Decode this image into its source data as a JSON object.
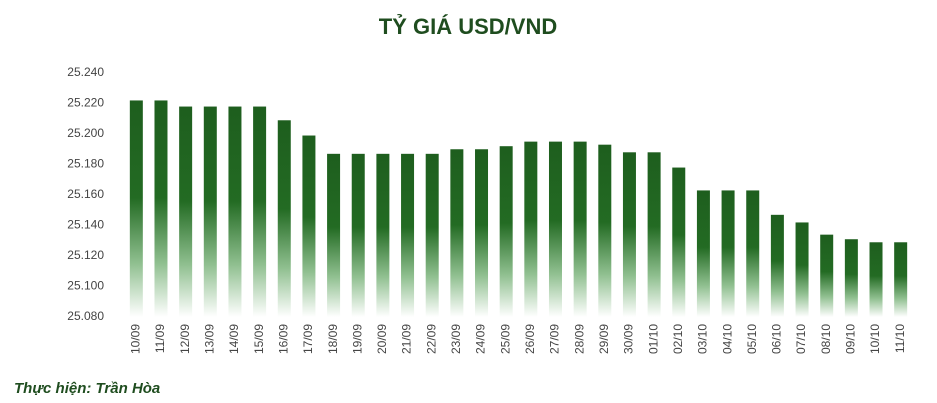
{
  "chart_data": {
    "type": "bar",
    "title": "TỶ GIÁ USD/VND",
    "credit": "Thực hiện: Trần Hòa",
    "categories": [
      "10/09",
      "11/09",
      "12/09",
      "13/09",
      "14/09",
      "15/09",
      "16/09",
      "17/09",
      "18/09",
      "19/09",
      "20/09",
      "21/09",
      "22/09",
      "23/09",
      "24/09",
      "25/09",
      "26/09",
      "27/09",
      "28/09",
      "29/09",
      "30/09",
      "01/10",
      "02/10",
      "03/10",
      "04/10",
      "05/10",
      "06/10",
      "07/10",
      "08/10",
      "09/10",
      "10/10",
      "11/10"
    ],
    "values": [
      25222,
      25222,
      25218,
      25218,
      25218,
      25218,
      25209,
      25199,
      25187,
      25187,
      25187,
      25187,
      25187,
      25190,
      25190,
      25192,
      25195,
      25195,
      25195,
      25193,
      25188,
      25188,
      25178,
      25163,
      25163,
      25163,
      25147,
      25142,
      25134,
      25131,
      25129,
      25129
    ],
    "color": "#1e5e1e",
    "ylim": [
      25080,
      25240
    ],
    "yticks": [
      {
        "value": 25080,
        "label": "25.080"
      },
      {
        "value": 25100,
        "label": "25.100"
      },
      {
        "value": 25120,
        "label": "25.120"
      },
      {
        "value": 25140,
        "label": "25.140"
      },
      {
        "value": 25160,
        "label": "25.160"
      },
      {
        "value": 25180,
        "label": "25.180"
      },
      {
        "value": 25200,
        "label": "25.200"
      },
      {
        "value": 25220,
        "label": "25.220"
      },
      {
        "value": 25240,
        "label": "25.240"
      }
    ]
  }
}
